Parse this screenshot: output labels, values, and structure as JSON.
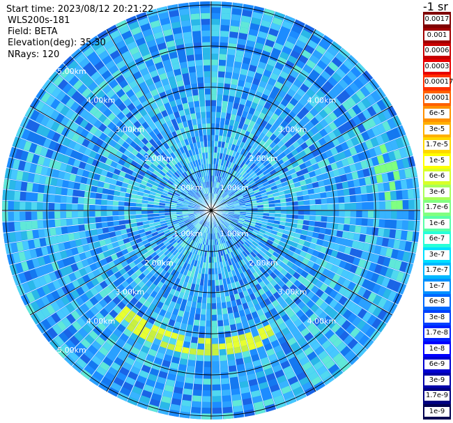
{
  "info": {
    "start_time": "Start time: 2023/08/12 20:21:22",
    "instrument": "WLS200s-181",
    "field": "Field: BETA",
    "elevation": "Elevation(deg): 35.30",
    "nrays": "NRays: 120"
  },
  "colorbar": {
    "units": "-1 sr",
    "labels": [
      "0.0017",
      "0.001",
      "0.0006",
      "0.0003",
      "0.00017",
      "0.0001",
      "6e-5",
      "3e-5",
      "1.7e-5",
      "1e-5",
      "6e-6",
      "3e-6",
      "1.7e-6",
      "1e-6",
      "6e-7",
      "3e-7",
      "1.7e-7",
      "1e-7",
      "6e-8",
      "3e-8",
      "1.7e-8",
      "1e-8",
      "6e-9",
      "3e-9",
      "1.7e-9",
      "1e-9"
    ],
    "colors": [
      "#800000",
      "#a00000",
      "#c80000",
      "#e80000",
      "#ff3000",
      "#ff6000",
      "#ff9000",
      "#ffb000",
      "#ffd800",
      "#ffff00",
      "#d8ff28",
      "#a8ff58",
      "#80ff80",
      "#58ffa8",
      "#28ffd8",
      "#00e0ff",
      "#00b8ff",
      "#0090ff",
      "#0068ff",
      "#0040ff",
      "#0020ff",
      "#0000ff",
      "#0000d0",
      "#0000a8",
      "#000080",
      "#000050"
    ]
  },
  "range_rings": {
    "labels": [
      "1.00km",
      "2.00km",
      "3.00km",
      "4.00km",
      "5.00km"
    ]
  }
}
